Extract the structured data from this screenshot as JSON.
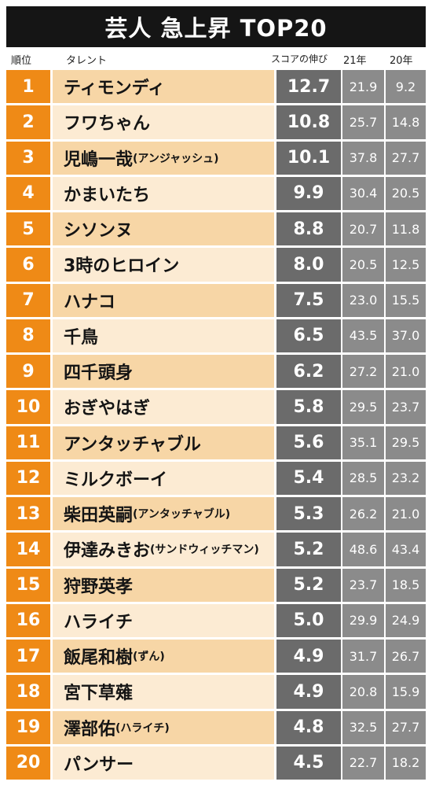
{
  "title": "芸人 急上昇 TOP20",
  "headers": {
    "rank": "順位",
    "talent": "タレント",
    "score": "スコアの伸び",
    "y21": "21年",
    "y20": "20年"
  },
  "chart_data": {
    "type": "table",
    "title": "芸人 急上昇 TOP20",
    "columns": [
      "順位",
      "タレント",
      "スコアの伸び",
      "21年",
      "20年"
    ],
    "rows": [
      {
        "rank": "1",
        "name": "ティモンディ",
        "sub": "",
        "growth": "12.7",
        "y21": "21.9",
        "y20": "9.2"
      },
      {
        "rank": "2",
        "name": "フワちゃん",
        "sub": "",
        "growth": "10.8",
        "y21": "25.7",
        "y20": "14.8"
      },
      {
        "rank": "3",
        "name": "児嶋一哉",
        "sub": "(アンジャッシュ)",
        "growth": "10.1",
        "y21": "37.8",
        "y20": "27.7"
      },
      {
        "rank": "4",
        "name": "かまいたち",
        "sub": "",
        "growth": "9.9",
        "y21": "30.4",
        "y20": "20.5"
      },
      {
        "rank": "5",
        "name": "シソンヌ",
        "sub": "",
        "growth": "8.8",
        "y21": "20.7",
        "y20": "11.8"
      },
      {
        "rank": "6",
        "name": "3時のヒロイン",
        "sub": "",
        "growth": "8.0",
        "y21": "20.5",
        "y20": "12.5"
      },
      {
        "rank": "7",
        "name": "ハナコ",
        "sub": "",
        "growth": "7.5",
        "y21": "23.0",
        "y20": "15.5"
      },
      {
        "rank": "8",
        "name": "千鳥",
        "sub": "",
        "growth": "6.5",
        "y21": "43.5",
        "y20": "37.0"
      },
      {
        "rank": "9",
        "name": "四千頭身",
        "sub": "",
        "growth": "6.2",
        "y21": "27.2",
        "y20": "21.0"
      },
      {
        "rank": "10",
        "name": "おぎやはぎ",
        "sub": "",
        "growth": "5.8",
        "y21": "29.5",
        "y20": "23.7"
      },
      {
        "rank": "11",
        "name": "アンタッチャブル",
        "sub": "",
        "growth": "5.6",
        "y21": "35.1",
        "y20": "29.5"
      },
      {
        "rank": "12",
        "name": "ミルクボーイ",
        "sub": "",
        "growth": "5.4",
        "y21": "28.5",
        "y20": "23.2"
      },
      {
        "rank": "13",
        "name": "柴田英嗣",
        "sub": "(アンタッチャブル)",
        "growth": "5.3",
        "y21": "26.2",
        "y20": "21.0"
      },
      {
        "rank": "14",
        "name": "伊達みきお",
        "sub": "(サンドウィッチマン)",
        "growth": "5.2",
        "y21": "48.6",
        "y20": "43.4"
      },
      {
        "rank": "15",
        "name": "狩野英孝",
        "sub": "",
        "growth": "5.2",
        "y21": "23.7",
        "y20": "18.5"
      },
      {
        "rank": "16",
        "name": "ハライチ",
        "sub": "",
        "growth": "5.0",
        "y21": "29.9",
        "y20": "24.9"
      },
      {
        "rank": "17",
        "name": "飯尾和樹",
        "sub": "(ずん)",
        "growth": "4.9",
        "y21": "31.7",
        "y20": "26.7"
      },
      {
        "rank": "18",
        "name": "宮下草薙",
        "sub": "",
        "growth": "4.9",
        "y21": "20.8",
        "y20": "15.9"
      },
      {
        "rank": "19",
        "name": "澤部佑",
        "sub": "(ハライチ)",
        "growth": "4.8",
        "y21": "32.5",
        "y20": "27.7"
      },
      {
        "rank": "20",
        "name": "パンサー",
        "sub": "",
        "growth": "4.5",
        "y21": "22.7",
        "y20": "18.2"
      }
    ]
  },
  "colors": {
    "title_bg": "#151515",
    "rank_bg": "#ef8a16",
    "name_bg_odd": "#f7d6a6",
    "name_bg_even": "#fcebd3",
    "score_bg": "#6b6b6b",
    "year_bg": "#8b8b8b"
  }
}
